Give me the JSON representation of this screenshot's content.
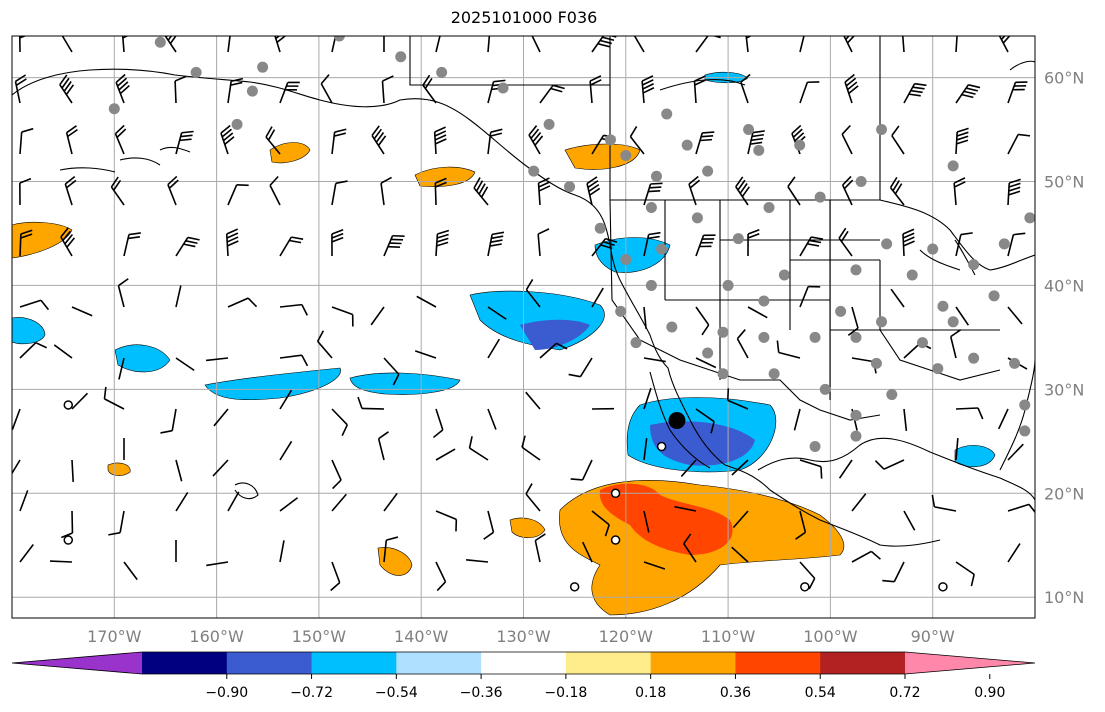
{
  "title": "2025101000 F036",
  "lon_labels": [
    {
      "lon": -170,
      "text": "170°W"
    },
    {
      "lon": -160,
      "text": "160°W"
    },
    {
      "lon": -150,
      "text": "150°W"
    },
    {
      "lon": -140,
      "text": "140°W"
    },
    {
      "lon": -130,
      "text": "130°W"
    },
    {
      "lon": -120,
      "text": "120°W"
    },
    {
      "lon": -110,
      "text": "110°W"
    },
    {
      "lon": -100,
      "text": "100°W"
    },
    {
      "lon": -90,
      "text": "90°W"
    }
  ],
  "lat_labels": [
    {
      "lat": 60,
      "text": "60°N"
    },
    {
      "lat": 50,
      "text": "50°N"
    },
    {
      "lat": 40,
      "text": "40°N"
    },
    {
      "lat": 30,
      "text": "30°N"
    },
    {
      "lat": 20,
      "text": "20°N"
    },
    {
      "lat": 10,
      "text": "10°N"
    }
  ],
  "map_extent": {
    "lon": [
      -180,
      -80
    ],
    "lat": [
      8,
      64
    ]
  },
  "colorbar": {
    "ticks": [
      "−0.90",
      "−0.72",
      "−0.54",
      "−0.36",
      "−0.18",
      "0.18",
      "0.36",
      "0.54",
      "0.72",
      "0.90"
    ],
    "colors": [
      "#9933cc",
      "#000080",
      "#3b5bd1",
      "#00bfff",
      "#b0e0ff",
      "#ffffff",
      "#ffec8b",
      "#ffa500",
      "#ff4500",
      "#b22222",
      "#ff88aa"
    ],
    "extend": "both"
  },
  "colors": {
    "grid": "#aaaaaa",
    "coast": "#000000",
    "label": "#808080",
    "station": "#888888"
  },
  "stations": [
    {
      "lon": -165.5,
      "lat": 63.4
    },
    {
      "lon": -155.5,
      "lat": 61.0
    },
    {
      "lon": -162.0,
      "lat": 60.5
    },
    {
      "lon": -156.5,
      "lat": 58.7
    },
    {
      "lon": -158.0,
      "lat": 55.5
    },
    {
      "lon": -170.0,
      "lat": 57.0
    },
    {
      "lon": -142.0,
      "lat": 62.0
    },
    {
      "lon": -148.0,
      "lat": 64.0
    },
    {
      "lon": -138.0,
      "lat": 60.5
    },
    {
      "lon": -132.0,
      "lat": 59.0
    },
    {
      "lon": -127.5,
      "lat": 55.5
    },
    {
      "lon": -121.5,
      "lat": 54.0
    },
    {
      "lon": -117.0,
      "lat": 50.5
    },
    {
      "lon": -112.0,
      "lat": 51.0
    },
    {
      "lon": -114.0,
      "lat": 53.5
    },
    {
      "lon": -107.0,
      "lat": 53.0
    },
    {
      "lon": -103.0,
      "lat": 53.5
    },
    {
      "lon": -97.0,
      "lat": 50.0
    },
    {
      "lon": -101.0,
      "lat": 48.5
    },
    {
      "lon": -106.0,
      "lat": 47.5
    },
    {
      "lon": -113.0,
      "lat": 46.5
    },
    {
      "lon": -117.5,
      "lat": 47.5
    },
    {
      "lon": -122.5,
      "lat": 45.5
    },
    {
      "lon": -120.0,
      "lat": 42.5
    },
    {
      "lon": -116.5,
      "lat": 43.5
    },
    {
      "lon": -109.0,
      "lat": 44.5
    },
    {
      "lon": -104.5,
      "lat": 41.0
    },
    {
      "lon": -97.5,
      "lat": 41.5
    },
    {
      "lon": -94.5,
      "lat": 44.0
    },
    {
      "lon": -92.0,
      "lat": 41.0
    },
    {
      "lon": -90.0,
      "lat": 43.5
    },
    {
      "lon": -86.0,
      "lat": 42.0
    },
    {
      "lon": -84.0,
      "lat": 39.0
    },
    {
      "lon": -88.0,
      "lat": 36.5
    },
    {
      "lon": -91.0,
      "lat": 34.5
    },
    {
      "lon": -95.0,
      "lat": 36.5
    },
    {
      "lon": -97.5,
      "lat": 35.0
    },
    {
      "lon": -101.5,
      "lat": 35.0
    },
    {
      "lon": -106.5,
      "lat": 35.0
    },
    {
      "lon": -110.5,
      "lat": 35.5
    },
    {
      "lon": -112.0,
      "lat": 33.5
    },
    {
      "lon": -115.5,
      "lat": 36.0
    },
    {
      "lon": -119.0,
      "lat": 34.5
    },
    {
      "lon": -120.5,
      "lat": 37.5
    },
    {
      "lon": -117.5,
      "lat": 40.0
    },
    {
      "lon": -110.0,
      "lat": 40.0
    },
    {
      "lon": -106.5,
      "lat": 38.5
    },
    {
      "lon": -99.0,
      "lat": 37.5
    },
    {
      "lon": -95.5,
      "lat": 32.5
    },
    {
      "lon": -89.5,
      "lat": 32.0
    },
    {
      "lon": -86.0,
      "lat": 33.0
    },
    {
      "lon": -82.0,
      "lat": 32.5
    },
    {
      "lon": -81.0,
      "lat": 28.5
    },
    {
      "lon": -97.5,
      "lat": 27.5
    },
    {
      "lon": -97.5,
      "lat": 25.5
    },
    {
      "lon": -100.5,
      "lat": 30.0
    },
    {
      "lon": -105.5,
      "lat": 31.5
    },
    {
      "lon": -110.5,
      "lat": 31.5
    },
    {
      "lon": -120.0,
      "lat": 52.5
    },
    {
      "lon": -108.0,
      "lat": 55.0
    },
    {
      "lon": -116.0,
      "lat": 56.5
    },
    {
      "lon": -129.0,
      "lat": 51.0
    },
    {
      "lon": -125.5,
      "lat": 49.5
    },
    {
      "lon": -95.0,
      "lat": 55.0
    },
    {
      "lon": -88.0,
      "lat": 51.5
    },
    {
      "lon": -83.0,
      "lat": 44.0
    },
    {
      "lon": -80.5,
      "lat": 46.5
    },
    {
      "lon": -89.0,
      "lat": 38.0
    },
    {
      "lon": -81.0,
      "lat": 26.0
    },
    {
      "lon": -94.0,
      "lat": 29.5
    },
    {
      "lon": -101.5,
      "lat": 24.5
    }
  ],
  "open_stations": [
    {
      "lon": -174.5,
      "lat": 28.5
    },
    {
      "lon": -174.5,
      "lat": 15.5
    },
    {
      "lon": -121.0,
      "lat": 20.0
    },
    {
      "lon": -121.0,
      "lat": 15.5
    },
    {
      "lon": -116.5,
      "lat": 24.5
    },
    {
      "lon": -125.0,
      "lat": 11.0
    },
    {
      "lon": -102.5,
      "lat": 11.0
    },
    {
      "lon": -89.0,
      "lat": 11.0
    }
  ],
  "big_station": {
    "lon": -115.0,
    "lat": 27.0
  }
}
